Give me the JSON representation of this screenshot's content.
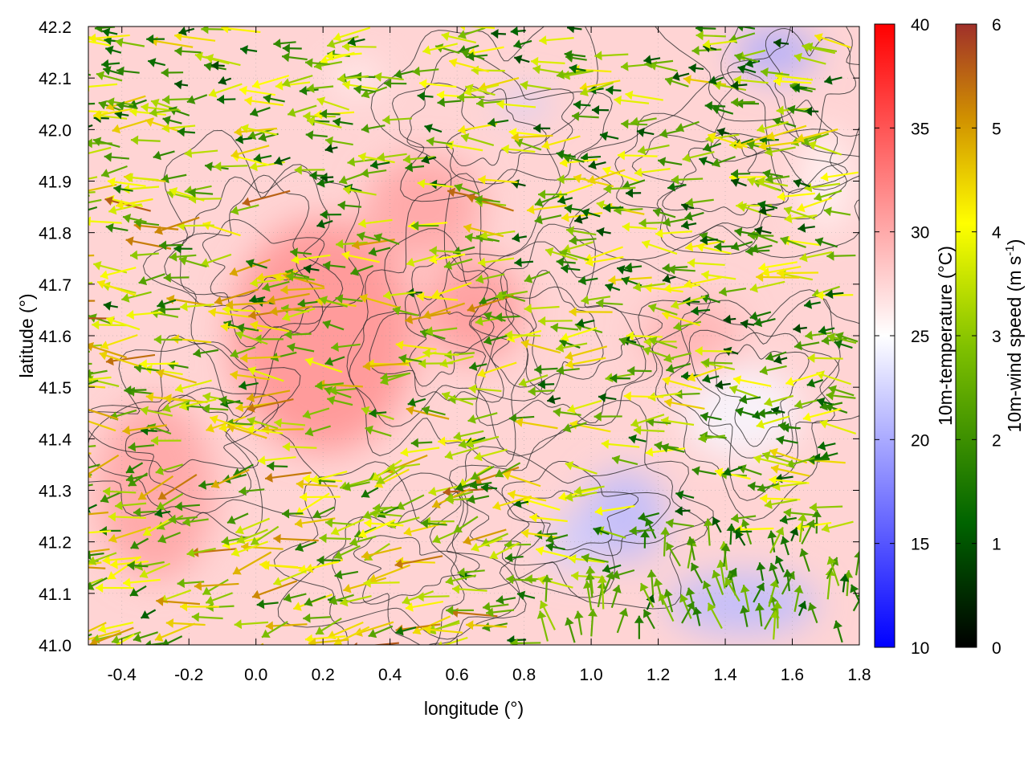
{
  "chart_data": {
    "type": "heatmap",
    "title": "",
    "xlabel": "longitude (°)",
    "ylabel": "latitude (°)",
    "xlim": [
      -0.5,
      1.8
    ],
    "ylim": [
      41.0,
      42.2
    ],
    "x_ticks": [
      "-0.4",
      "-0.2",
      "0.0",
      "0.2",
      "0.4",
      "0.6",
      "0.8",
      "1.0",
      "1.2",
      "1.4",
      "1.6",
      "1.8"
    ],
    "x_tick_values": [
      -0.4,
      -0.2,
      0.0,
      0.2,
      0.4,
      0.6,
      0.8,
      1.0,
      1.2,
      1.4,
      1.6,
      1.8
    ],
    "y_ticks": [
      "41.0",
      "41.1",
      "41.2",
      "41.3",
      "41.4",
      "41.5",
      "41.6",
      "41.7",
      "41.8",
      "41.9",
      "42.0",
      "42.1",
      "42.2"
    ],
    "y_tick_values": [
      41.0,
      41.1,
      41.2,
      41.3,
      41.4,
      41.5,
      41.6,
      41.7,
      41.8,
      41.9,
      42.0,
      42.1,
      42.2
    ],
    "grid": true,
    "overlays": [
      "wind vectors",
      "terrain contours"
    ],
    "colorbars": [
      {
        "label": "10m-temperature (°C)",
        "range": [
          10,
          40
        ],
        "ticks": [
          "10",
          "15",
          "20",
          "25",
          "30",
          "35",
          "40"
        ],
        "tick_values": [
          10,
          15,
          20,
          25,
          30,
          35,
          40
        ],
        "colors": [
          "#0000ff",
          "#ffffff",
          "#ff0000"
        ]
      },
      {
        "label_main": "10m-wind speed (m s",
        "label_sup": "-1",
        "label_end": ")",
        "range": [
          0,
          6
        ],
        "ticks": [
          "0",
          "1",
          "2",
          "3",
          "4",
          "5",
          "6"
        ],
        "tick_values": [
          0,
          1,
          2,
          3,
          4,
          5,
          6
        ],
        "colors": [
          "#000000",
          "#006400",
          "#7fc000",
          "#ffff00",
          "#d09000",
          "#a0302a"
        ]
      }
    ],
    "temperature_field": {
      "background": 27.5,
      "regions": [
        {
          "lon": 0.2,
          "lat": 41.6,
          "w": 0.55,
          "h": 0.45,
          "value": 31.5
        },
        {
          "lon": 0.65,
          "lat": 41.65,
          "w": 0.3,
          "h": 0.2,
          "value": 31
        },
        {
          "lon": -0.3,
          "lat": 41.3,
          "w": 0.35,
          "h": 0.35,
          "value": 30.5
        },
        {
          "lon": 0.5,
          "lat": 41.85,
          "w": 0.35,
          "h": 0.2,
          "value": 30.5
        },
        {
          "lon": 1.3,
          "lat": 41.6,
          "w": 0.3,
          "h": 0.15,
          "value": 29.5
        },
        {
          "lon": 1.1,
          "lat": 41.25,
          "w": 0.25,
          "h": 0.18,
          "value": 21
        },
        {
          "lon": 1.45,
          "lat": 41.08,
          "w": 0.45,
          "h": 0.12,
          "value": 21
        },
        {
          "lon": 0.95,
          "lat": 41.2,
          "w": 0.15,
          "h": 0.12,
          "value": 22
        },
        {
          "lon": 1.45,
          "lat": 41.45,
          "w": 0.35,
          "h": 0.18,
          "value": 24.5
        },
        {
          "lon": 1.55,
          "lat": 42.15,
          "w": 0.25,
          "h": 0.1,
          "value": 20
        },
        {
          "lon": 0.8,
          "lat": 42.05,
          "w": 0.15,
          "h": 0.05,
          "value": 22
        },
        {
          "lon": 1.7,
          "lat": 41.9,
          "w": 0.15,
          "h": 0.2,
          "value": 25.5
        },
        {
          "lon": 0.3,
          "lat": 42.1,
          "w": 0.15,
          "h": 0.06,
          "value": 25.5
        }
      ]
    },
    "wind_vectors": {
      "count": 1100,
      "prevailing": "easterly",
      "speed_range": [
        0.8,
        6
      ],
      "strong_wind_area": "west, 41.0–41.9",
      "sea_breeze_area": "southeast, northward flow"
    },
    "contour_centers": [
      [
        0.0,
        41.75
      ],
      [
        0.55,
        41.6
      ],
      [
        0.45,
        41.15
      ],
      [
        0.95,
        41.25
      ],
      [
        1.5,
        41.5
      ],
      [
        0.7,
        42.0
      ],
      [
        1.4,
        41.9
      ],
      [
        -0.2,
        41.4
      ],
      [
        0.9,
        41.6
      ],
      [
        1.65,
        42.1
      ]
    ]
  }
}
